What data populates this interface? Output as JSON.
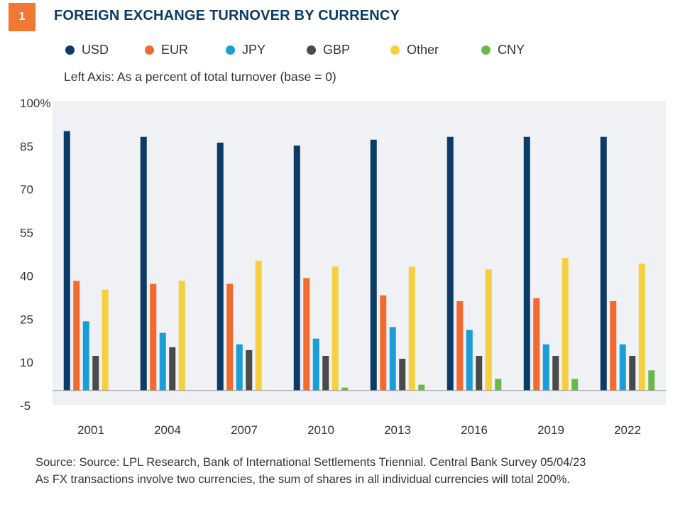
{
  "header": {
    "number": "1",
    "title": "FOREIGN EXCHANGE TURNOVER BY CURRENCY"
  },
  "axis_note": "Left Axis: As a percent of total turnover (base = 0)",
  "footnotes": {
    "source": "Source: Source: LPL Research, Bank of International Settlements Triennial. Central Bank Survey  05/04/23",
    "note": "As FX transactions involve two currencies, the sum of shares in all individual currencies will total 200%."
  },
  "colors": {
    "accent": "#f07832",
    "title": "#0b3b66",
    "plot_bg": "#f0f1f4"
  },
  "chart_data": {
    "type": "bar",
    "categories": [
      "2001",
      "2004",
      "2007",
      "2010",
      "2013",
      "2016",
      "2019",
      "2022"
    ],
    "series": [
      {
        "name": "USD",
        "color": "#0b3b66",
        "values": [
          90,
          88,
          86,
          85,
          87,
          88,
          88,
          88
        ]
      },
      {
        "name": "EUR",
        "color": "#f26a2e",
        "values": [
          38,
          37,
          37,
          39,
          33,
          31,
          32,
          31
        ]
      },
      {
        "name": "JPY",
        "color": "#1a9ed9",
        "values": [
          24,
          20,
          16,
          18,
          22,
          21,
          16,
          16
        ]
      },
      {
        "name": "GBP",
        "color": "#4a4a4a",
        "values": [
          12,
          15,
          14,
          12,
          11,
          12,
          12,
          12
        ]
      },
      {
        "name": "Other",
        "color": "#f4cf3f",
        "values": [
          35,
          38,
          45,
          43,
          43,
          42,
          46,
          44
        ]
      },
      {
        "name": "CNY",
        "color": "#6ab84a",
        "values": [
          null,
          null,
          null,
          1,
          2,
          4,
          4,
          7
        ]
      }
    ],
    "y_ticks": [
      "100%",
      "85",
      "70",
      "55",
      "40",
      "25",
      "10",
      "-5"
    ],
    "y_tick_values": [
      100,
      85,
      70,
      55,
      40,
      25,
      10,
      -5
    ],
    "ylim": [
      -5,
      100
    ],
    "baseline": 0,
    "grid": false,
    "legend_position": "top"
  }
}
